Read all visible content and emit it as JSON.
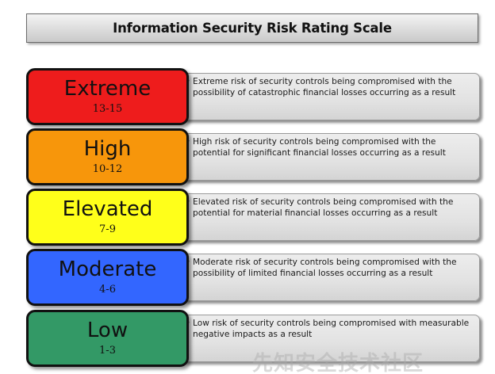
{
  "title": "Information Security Risk Rating Scale",
  "levels": [
    {
      "name": "Extreme",
      "range": "13-15",
      "color": "#ee1c1c",
      "description": "Extreme risk of security controls being compromised with the possibility of catastrophic financial losses occurring as a result"
    },
    {
      "name": "High",
      "range": "10-12",
      "color": "#f7960b",
      "description": "High risk of security controls being compromised with the potential for significant financial losses occurring as a result"
    },
    {
      "name": "Elevated",
      "range": "7-9",
      "color": "#ffff1a",
      "description": "Elevated risk of security controls being compromised with the potential for material financial losses occurring as a result"
    },
    {
      "name": "Moderate",
      "range": "4-6",
      "color": "#3366ff",
      "description": "Moderate risk of security controls being compromised with the possibility of limited financial losses occurring as a result"
    },
    {
      "name": "Low",
      "range": "1-3",
      "color": "#339966",
      "description": "Low risk of security controls being compromised with measurable negative impacts as a result"
    }
  ],
  "watermark": "先知安全技术社区"
}
